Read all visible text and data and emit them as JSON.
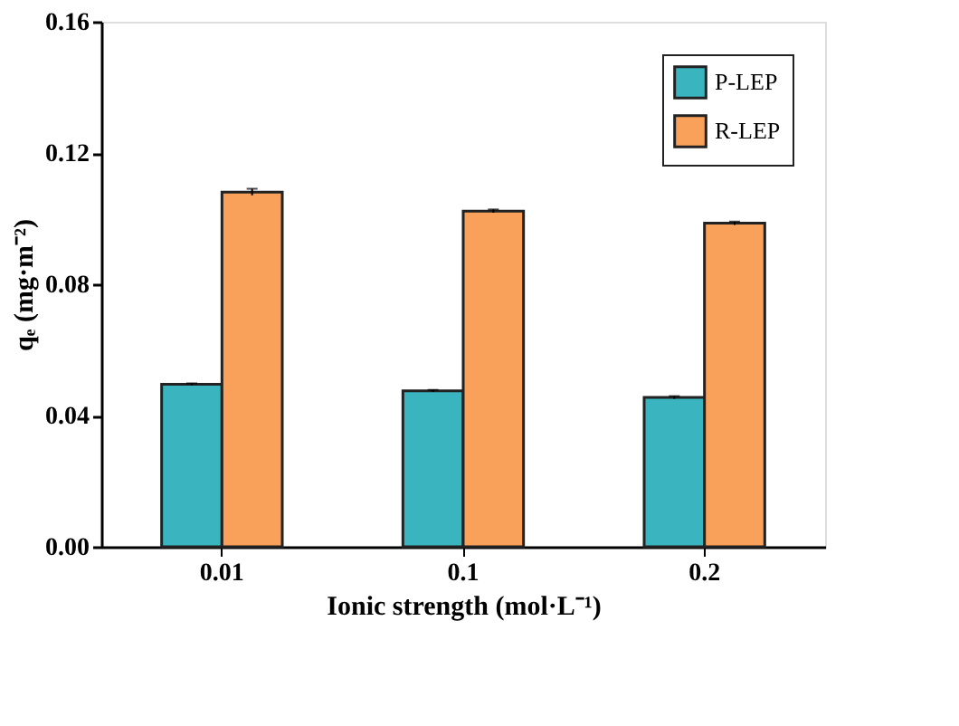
{
  "chart_data": {
    "type": "bar",
    "xlabel": "Ionic strength (mol·L⁻¹)",
    "ylabel": "qₑ (mg·m⁻²)",
    "categories": [
      "0.01",
      "0.1",
      "0.2"
    ],
    "series": [
      {
        "name": "P-LEP",
        "color": "#3ab5bf",
        "values": [
          0.0495,
          0.0475,
          0.0455
        ],
        "errors": [
          0.0003,
          0.0003,
          0.0004
        ]
      },
      {
        "name": "R-LEP",
        "color": "#f9a05a",
        "values": [
          0.1081,
          0.1023,
          0.0986
        ],
        "errors": [
          0.001,
          0.0005,
          0.0005
        ]
      }
    ],
    "ylim": [
      0,
      0.16
    ],
    "yticks": [
      {
        "value": 0,
        "label": "0.00"
      },
      {
        "value": 0.04,
        "label": "0.04"
      },
      {
        "value": 0.08,
        "label": "0.08"
      },
      {
        "value": 0.12,
        "label": "0.12"
      },
      {
        "value": 0.16,
        "label": "0.16"
      }
    ],
    "grid": false,
    "legend": "top right"
  }
}
